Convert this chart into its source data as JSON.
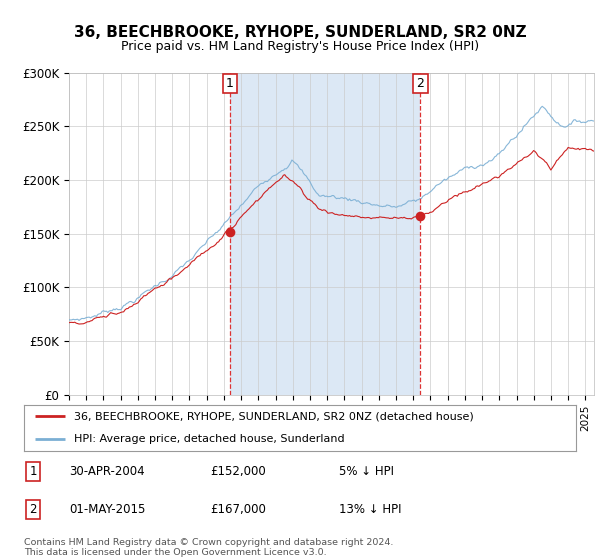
{
  "title": "36, BEECHBROOKE, RYHOPE, SUNDERLAND, SR2 0NZ",
  "subtitle": "Price paid vs. HM Land Registry's House Price Index (HPI)",
  "ylim": [
    0,
    300000
  ],
  "xlim_start": 1995.0,
  "xlim_end": 2025.5,
  "hpi_color": "#7bafd4",
  "price_color": "#cc2222",
  "marker1_date": 2004.33,
  "marker1_price": 152000,
  "marker2_date": 2015.42,
  "marker2_price": 167000,
  "highlight_color": "#dce8f5",
  "background_color": "#ffffff",
  "grid_color": "#cccccc",
  "legend_line1": "36, BEECHBROOKE, RYHOPE, SUNDERLAND, SR2 0NZ (detached house)",
  "legend_line2": "HPI: Average price, detached house, Sunderland",
  "table_row1": [
    "1",
    "30-APR-2004",
    "£152,000",
    "5% ↓ HPI"
  ],
  "table_row2": [
    "2",
    "01-MAY-2015",
    "£167,000",
    "13% ↓ HPI"
  ],
  "footer": "Contains HM Land Registry data © Crown copyright and database right 2024.\nThis data is licensed under the Open Government Licence v3.0."
}
